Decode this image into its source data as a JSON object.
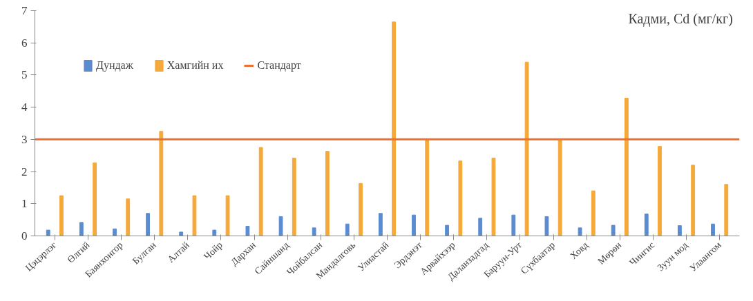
{
  "chart_data": {
    "type": "bar",
    "title": "Кадми, Cd (мг/кг)",
    "categories": [
      "Цэцэрлэг",
      "Өлгий",
      "Баянхонгор",
      "Булган",
      "Алтай",
      "Чойр",
      "Дархан",
      "Сайншанд",
      "Чойбалсан",
      "Мандалговь",
      "Улиастай",
      "Эрдэнэт",
      "Арвайхээр",
      "Даланзадгад",
      "Баруун-Урт",
      "Сүхбаатар",
      "Ховд",
      "Мөрөн",
      "Чингис",
      "Зуун мод",
      "Улаангом"
    ],
    "series": [
      {
        "name": "Дундаж",
        "color": "#5b8bd0",
        "values": [
          0.18,
          0.42,
          0.22,
          0.7,
          0.12,
          0.18,
          0.3,
          0.6,
          0.25,
          0.37,
          0.7,
          0.65,
          0.33,
          0.55,
          0.65,
          0.6,
          0.25,
          0.33,
          0.68,
          0.32,
          0.37
        ]
      },
      {
        "name": "Хамгийн их",
        "color": "#f5a93a",
        "values": [
          1.25,
          2.27,
          1.15,
          3.25,
          1.25,
          1.25,
          2.75,
          2.42,
          2.63,
          1.63,
          6.65,
          2.98,
          2.33,
          2.42,
          5.4,
          3.0,
          1.4,
          4.28,
          2.78,
          2.2,
          1.6
        ]
      }
    ],
    "ref_lines": [
      {
        "axis": "y",
        "value": 3.0,
        "label": "Стандарт",
        "color": "#ed7030",
        "line_style": "solid"
      }
    ],
    "ylim": [
      0,
      7
    ],
    "yticks": [
      0,
      1,
      2,
      3,
      4,
      5,
      6,
      7
    ],
    "grid": false,
    "legend": "top left"
  }
}
